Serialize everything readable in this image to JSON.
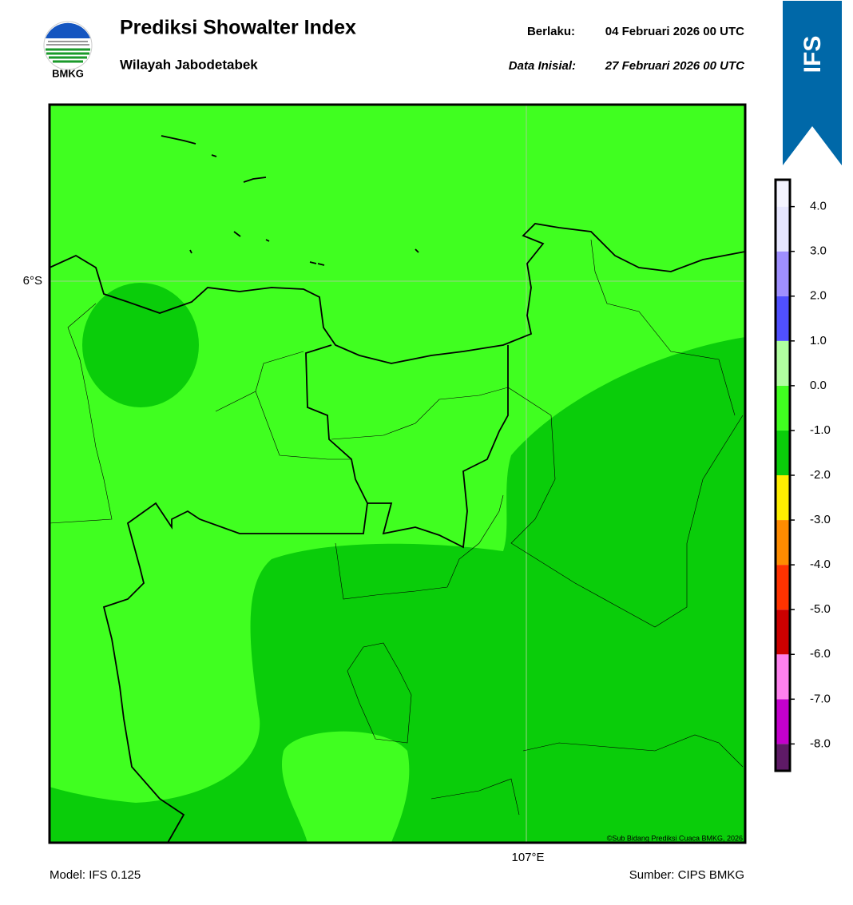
{
  "header": {
    "title": "Prediksi Showalter Index",
    "subtitle": "Wilayah Jabodetabek",
    "valid_label": "Berlaku:",
    "valid": "04 Februari 2026 00 UTC",
    "init_label": "Data Inisial:",
    "init": "27 Februari 2026 00 UTC"
  },
  "logo": {
    "text": "BMKG"
  },
  "badge": {
    "text": "IFS"
  },
  "map": {
    "lat_label": "6°S",
    "lon_label": "107°E",
    "copyright": "©Sub Bidang Prediksi Cuaca BMKG, 2026"
  },
  "colorbar": {
    "lim": [
      -8.6,
      4.6
    ],
    "bounds": [
      -8.6,
      -8,
      -7,
      -6,
      -5,
      -4,
      -3,
      -2,
      -1,
      0,
      1,
      2,
      3,
      4,
      4.6
    ],
    "colors": [
      "#5e1a66",
      "#c400cc",
      "#ff80ee",
      "#cc0000",
      "#ff3300",
      "#ff8c00",
      "#ffee00",
      "#0acd0a",
      "#40ff20",
      "#b0ffa0",
      "#5050ff",
      "#9f8fff",
      "#e6e6ff",
      "#f4f4ff"
    ],
    "ticks": [
      {
        "value": 4,
        "label": "4.0"
      },
      {
        "value": 3,
        "label": "3.0"
      },
      {
        "value": 2,
        "label": "2.0"
      },
      {
        "value": 1,
        "label": "1.0"
      },
      {
        "value": 0,
        "label": "0.0"
      },
      {
        "value": -1,
        "label": "-1.0"
      },
      {
        "value": -2,
        "label": "-2.0"
      },
      {
        "value": -3,
        "label": "-3.0"
      },
      {
        "value": -4,
        "label": "-4.0"
      },
      {
        "value": -5,
        "label": "-5.0"
      },
      {
        "value": -6,
        "label": "-6.0"
      },
      {
        "value": -7,
        "label": "-7.0"
      },
      {
        "value": -8,
        "label": "-8.0"
      }
    ]
  },
  "footer": {
    "model": "Model: IFS 0.125",
    "source": "Sumber: CIPS BMKG"
  }
}
